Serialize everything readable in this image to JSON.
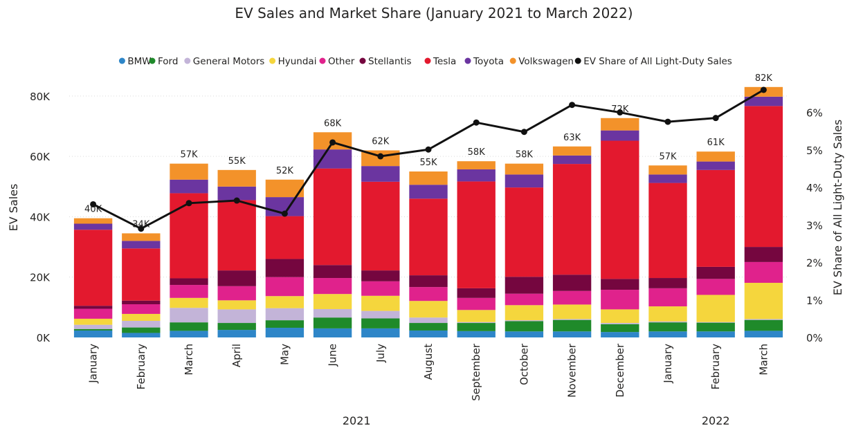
{
  "chart_data": {
    "type": "bar",
    "stacked": true,
    "title": "EV Sales and Market Share (January 2021 to March 2022)",
    "ylabel": "EV Sales",
    "y2label": "EV Share of All Light-Duty Sales",
    "ylim": [
      0,
      88000
    ],
    "y2lim": [
      0,
      0.066
    ],
    "yticks": [
      {
        "value": 0,
        "label": "0K"
      },
      {
        "value": 20000,
        "label": "20K"
      },
      {
        "value": 40000,
        "label": "40K"
      },
      {
        "value": 60000,
        "label": "60K"
      },
      {
        "value": 80000,
        "label": "80K"
      }
    ],
    "y2ticks": [
      {
        "value": 0,
        "label": "0%"
      },
      {
        "value": 0.01,
        "label": "1%"
      },
      {
        "value": 0.02,
        "label": "2%"
      },
      {
        "value": 0.03,
        "label": "3%"
      },
      {
        "value": 0.04,
        "label": "4%"
      },
      {
        "value": 0.05,
        "label": "5%"
      },
      {
        "value": 0.06,
        "label": "6%"
      }
    ],
    "grid": true,
    "legend_position": "top",
    "categories": [
      "January",
      "February",
      "March",
      "April",
      "May",
      "June",
      "July",
      "August",
      "September",
      "October",
      "November",
      "December",
      "January",
      "February",
      "March"
    ],
    "year_groups": [
      {
        "label": "2021",
        "start": 0,
        "end": 11
      },
      {
        "label": "2022",
        "start": 12,
        "end": 14
      }
    ],
    "totals": [
      "40K",
      "34K",
      "57K",
      "55K",
      "52K",
      "68K",
      "62K",
      "55K",
      "58K",
      "58K",
      "63K",
      "72K",
      "57K",
      "61K",
      "82K"
    ],
    "series": [
      {
        "name": "BMW",
        "color": "#2e86c8",
        "values": [
          2300,
          1500,
          2200,
          2500,
          3200,
          3000,
          3000,
          2300,
          2100,
          2000,
          2000,
          1800,
          2000,
          2000,
          2200
        ]
      },
      {
        "name": "Ford",
        "color": "#1f8a2a",
        "values": [
          500,
          1800,
          2800,
          2300,
          2500,
          3600,
          3300,
          2500,
          2700,
          3400,
          3800,
          2600,
          3000,
          2900,
          3600
        ]
      },
      {
        "name": "General Motors",
        "color": "#c3b4d8",
        "values": [
          1400,
          2200,
          4800,
          4500,
          4000,
          2800,
          2500,
          1800,
          300,
          300,
          300,
          400,
          300,
          200,
          300
        ]
      },
      {
        "name": "Hyundai",
        "color": "#f5d63d",
        "values": [
          2000,
          2300,
          3300,
          3000,
          4000,
          5000,
          5000,
          5500,
          4000,
          5000,
          4800,
          4500,
          5000,
          9000,
          12000
        ]
      },
      {
        "name": "Other",
        "color": "#e0228c",
        "values": [
          3300,
          3200,
          4300,
          4700,
          6300,
          5300,
          4800,
          4600,
          4000,
          3800,
          4500,
          6500,
          6000,
          5300,
          6900
        ]
      },
      {
        "name": "Stellantis",
        "color": "#75063f",
        "values": [
          1000,
          1200,
          2200,
          5200,
          6000,
          4300,
          3600,
          3900,
          3200,
          5600,
          5400,
          3600,
          3400,
          4000,
          5000
        ]
      },
      {
        "name": "Tesla",
        "color": "#e3192e",
        "values": [
          25200,
          17300,
          28200,
          23300,
          14200,
          32000,
          29400,
          25400,
          35400,
          29600,
          36700,
          45800,
          31500,
          32100,
          46700
        ]
      },
      {
        "name": "Toyota",
        "color": "#6b35a0",
        "values": [
          2000,
          2500,
          4500,
          4500,
          6300,
          6300,
          5200,
          4600,
          4000,
          4300,
          2800,
          3400,
          2800,
          2800,
          3100
        ]
      },
      {
        "name": "Volkswagen",
        "color": "#f3922a",
        "values": [
          1800,
          2500,
          5300,
          5500,
          5800,
          5700,
          5200,
          4400,
          2700,
          3600,
          3000,
          4100,
          3000,
          3300,
          3200
        ]
      }
    ],
    "line": {
      "name": "EV Share of All Light-Duty Sales",
      "color": "#111111",
      "values": [
        0.0355,
        0.029,
        0.0358,
        0.0365,
        0.033,
        0.052,
        0.0483,
        0.0501,
        0.0573,
        0.0548,
        0.062,
        0.06,
        0.0575,
        0.0585,
        0.066
      ]
    }
  }
}
